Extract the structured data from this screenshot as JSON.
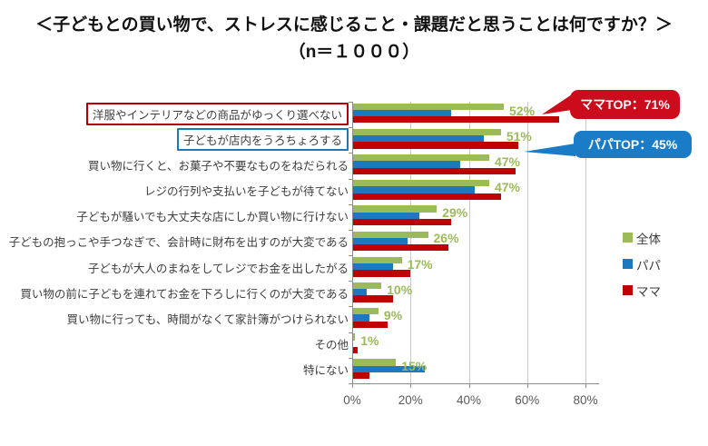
{
  "title": "＜子どもとの買い物で、ストレスに感じること・課題だと思うことは何ですか？＞",
  "subtitle": "（n＝１０００）",
  "callouts": {
    "mama": {
      "label": "ママTOP：71%",
      "color": "#cc0c1c"
    },
    "papa": {
      "label": "パパTOP：45%",
      "color": "#1a7cc6"
    }
  },
  "chart_data": {
    "type": "bar",
    "orientation": "horizontal",
    "categories": [
      "洋服やインテリアなどの商品がゆっくり選べない",
      "子どもが店内をうろちょろする",
      "買い物に行くと、お菓子や不要なものをねだられる",
      "レジの行列や支払いを子どもが待てない",
      "子どもが騒いでも大丈夫な店にしか買い物に行けない",
      "子どもの抱っこや手つなぎで、会計時に財布を出すのが大変である",
      "子どもが大人のまねをしてレジでお金を出したがる",
      "買い物の前に子どもを連れてお金を下ろしに行くのが大変である",
      "買い物に行っても、時間がなくて家計簿がつけられない",
      "その他",
      "特にない"
    ],
    "series": [
      {
        "name": "全体",
        "color": "#9bbb59",
        "values": [
          52,
          51,
          47,
          47,
          29,
          26,
          17,
          10,
          9,
          1,
          15
        ]
      },
      {
        "name": "パパ",
        "color": "#1c79c0",
        "values": [
          34,
          45,
          37,
          42,
          23,
          19,
          14,
          5,
          6,
          0,
          25
        ]
      },
      {
        "name": "ママ",
        "color": "#c00000",
        "values": [
          71,
          57,
          56,
          51,
          34,
          33,
          20,
          14,
          12,
          2,
          6
        ]
      }
    ],
    "value_labels_series": "全体",
    "value_label_suffix": "%",
    "x_tick_values": [
      0,
      20,
      40,
      60,
      80
    ],
    "x_tick_labels": [
      "0%",
      "20%",
      "40%",
      "60%",
      "80%"
    ],
    "xlim": [
      0,
      85
    ],
    "grid": true,
    "legend_position": "right",
    "highlight_boxes": [
      {
        "index": 0,
        "color": "#b00000"
      },
      {
        "index": 1,
        "color": "#1c79c0"
      }
    ]
  }
}
